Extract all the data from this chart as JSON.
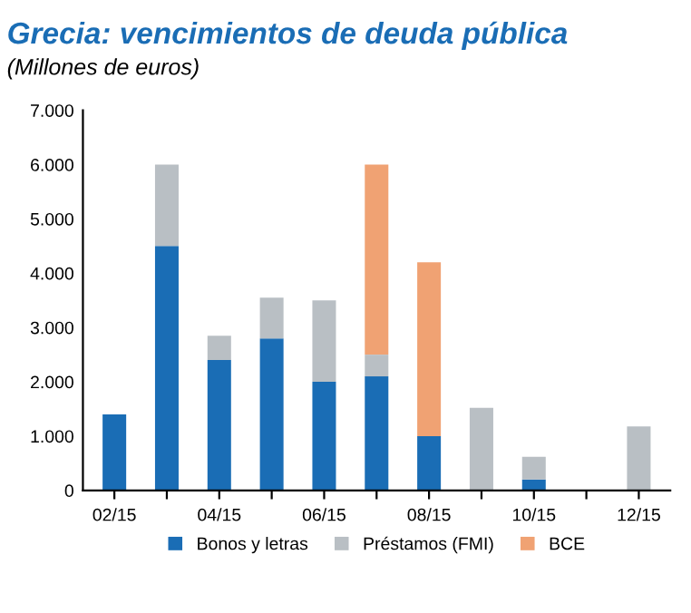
{
  "chart_data": {
    "type": "bar",
    "title": "Grecia: vencimientos de deuda pública",
    "subtitle": "(Millones de euros)",
    "categories": [
      "02/15",
      null,
      "04/15",
      null,
      "06/15",
      null,
      "08/15",
      null,
      "10/15",
      null,
      "12/15"
    ],
    "stacked": true,
    "series": [
      {
        "name": "Bonos y letras",
        "color": "#1a6db5",
        "values": [
          1400,
          4500,
          2400,
          2800,
          2000,
          2100,
          1000,
          0,
          200,
          0,
          0
        ]
      },
      {
        "name": "Préstamos (FMI)",
        "color": "#b9bfc4",
        "values": [
          0,
          1500,
          450,
          750,
          1500,
          400,
          0,
          1520,
          420,
          0,
          1180
        ]
      },
      {
        "name": "BCE",
        "color": "#f0a273",
        "values": [
          0,
          0,
          0,
          0,
          0,
          3500,
          3200,
          0,
          0,
          0,
          0
        ]
      }
    ],
    "ylim": [
      0,
      7000
    ],
    "yticks": [
      0,
      {
        "value": 1000,
        "label": "1.000"
      },
      {
        "value": 2000,
        "label": "2.000"
      },
      {
        "value": 3000,
        "label": "3.000"
      },
      {
        "value": 4000,
        "label": "4.000"
      },
      {
        "value": 5000,
        "label": "5.000"
      },
      {
        "value": 6000,
        "label": "6.000"
      },
      {
        "value": 7000,
        "label": "7.000"
      }
    ],
    "grid": false,
    "legend": "bottom"
  }
}
